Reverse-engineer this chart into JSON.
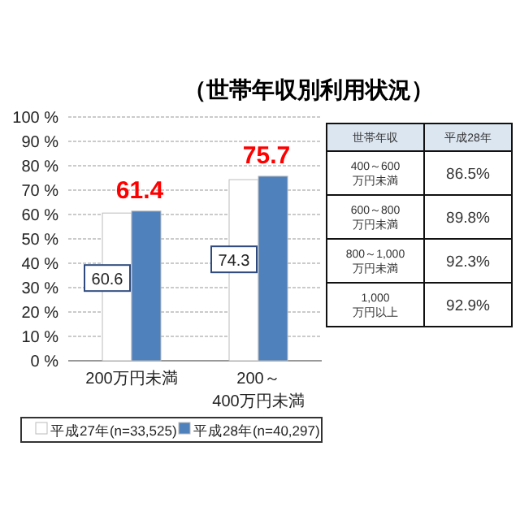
{
  "chart_data": [
    {
      "type": "bar",
      "title": "（世帯年収別利用状況）",
      "categories": [
        "200万円未満",
        "200～\n400万円未満"
      ],
      "series": [
        {
          "name": "平成27年(n=33,525)",
          "color": "#ffffff",
          "values": [
            60.6,
            74.3
          ]
        },
        {
          "name": "平成28年(n=40,297)",
          "color": "#4f81bd",
          "values": [
            61.4,
            75.7
          ]
        }
      ],
      "ylim": [
        0,
        100
      ],
      "yticks": [
        {
          "value": 0,
          "label": "0 %"
        },
        {
          "value": 10,
          "label": "10 %"
        },
        {
          "value": 20,
          "label": "20 %"
        },
        {
          "value": 30,
          "label": "30 %"
        },
        {
          "value": 40,
          "label": "40 %"
        },
        {
          "value": 50,
          "label": "50 %"
        },
        {
          "value": 60,
          "label": "60 %"
        },
        {
          "value": 70,
          "label": "70 %"
        },
        {
          "value": 80,
          "label": "80 %"
        },
        {
          "value": 90,
          "label": "90 %"
        },
        {
          "value": 100,
          "label": "100 %"
        }
      ],
      "grid": "y",
      "legend": "bottom",
      "data_labels": true
    },
    {
      "type": "other",
      "annotations": [
        "世帯年収",
        "平成28年"
      ],
      "categories": [
        "400～600\n万円未満",
        "600～800\n万円未満",
        "800～1,000\n万円未満",
        "1,000\n万円以上"
      ],
      "value_labels": [
        "86.5%",
        "89.8%",
        "92.3%",
        "92.9%"
      ]
    }
  ]
}
